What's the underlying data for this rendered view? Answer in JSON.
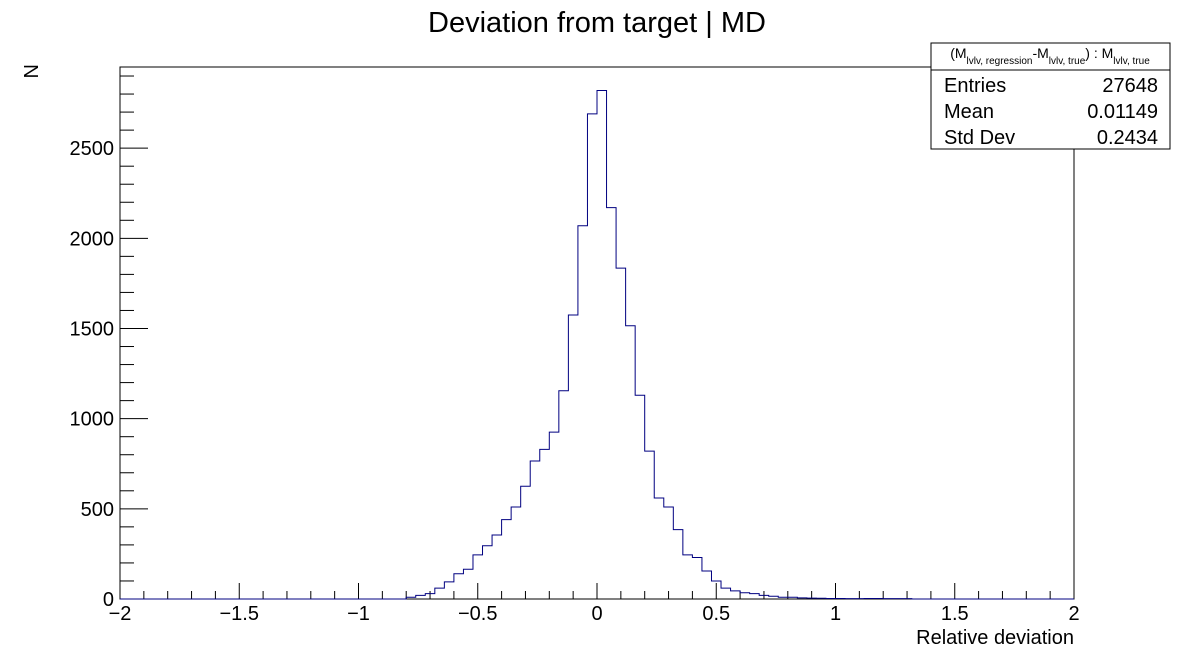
{
  "chart_data": {
    "type": "histogram",
    "title": "Deviation from target | MD",
    "xlabel": "Relative deviation",
    "ylabel": "N",
    "xlim": [
      -2,
      2
    ],
    "ylim": [
      0,
      2950
    ],
    "x_ticks": [
      {
        "value": -2,
        "label": "−2"
      },
      {
        "value": -1.5,
        "label": "−1.5"
      },
      {
        "value": -1,
        "label": "−1"
      },
      {
        "value": -0.5,
        "label": "−0.5"
      },
      {
        "value": 0,
        "label": "0"
      },
      {
        "value": 0.5,
        "label": "0.5"
      },
      {
        "value": 1,
        "label": "1"
      },
      {
        "value": 1.5,
        "label": "1.5"
      },
      {
        "value": 2,
        "label": "2"
      }
    ],
    "y_ticks": [
      {
        "value": 0,
        "label": "0"
      },
      {
        "value": 500,
        "label": "500"
      },
      {
        "value": 1000,
        "label": "1000"
      },
      {
        "value": 1500,
        "label": "1500"
      },
      {
        "value": 2000,
        "label": "2000"
      },
      {
        "value": 2500,
        "label": "2500"
      }
    ],
    "series_color": "#000080",
    "bin_width": 0.04,
    "bins_x_start": [
      -0.8,
      -0.76,
      -0.72,
      -0.68,
      -0.64,
      -0.6,
      -0.56,
      -0.52,
      -0.48,
      -0.44,
      -0.4,
      -0.36,
      -0.32,
      -0.28,
      -0.24,
      -0.2,
      -0.16,
      -0.12,
      -0.08,
      -0.04,
      0.0,
      0.04,
      0.08,
      0.12,
      0.16,
      0.2,
      0.24,
      0.28,
      0.32,
      0.36,
      0.4,
      0.44,
      0.48,
      0.52,
      0.56,
      0.6,
      0.64,
      0.68,
      0.72,
      0.76,
      0.8,
      0.84,
      0.88,
      0.92,
      0.96,
      1.0,
      1.04,
      1.08,
      1.12,
      1.16,
      1.2,
      1.24,
      1.28
    ],
    "bin_counts": [
      10,
      20,
      30,
      60,
      95,
      140,
      165,
      245,
      295,
      355,
      440,
      510,
      625,
      765,
      830,
      925,
      1155,
      1575,
      2070,
      2690,
      2820,
      2170,
      1835,
      1515,
      1130,
      820,
      560,
      510,
      385,
      245,
      230,
      155,
      100,
      60,
      45,
      35,
      30,
      20,
      15,
      10,
      10,
      6,
      5,
      4,
      3,
      3,
      2,
      2,
      3,
      3,
      2,
      2,
      2
    ],
    "stats_box": {
      "header": {
        "open": "(M",
        "sub1": "lvlv, regression",
        "minus": "-M",
        "sub2": "lvlv, true",
        "mid": ") : M",
        "sub3": "lvlv, true"
      },
      "rows": [
        {
          "label": "Entries",
          "value": "27648"
        },
        {
          "label": "Mean",
          "value": "0.01149"
        },
        {
          "label": "Std Dev",
          "value": "0.2434"
        }
      ]
    }
  }
}
